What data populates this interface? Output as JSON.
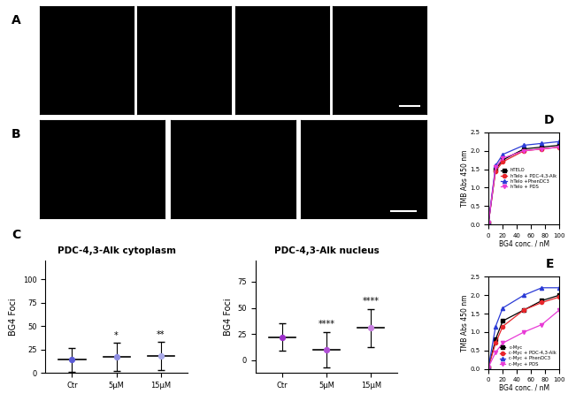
{
  "chart_data": [
    {
      "type": "image",
      "label": "A",
      "panels": 4
    },
    {
      "type": "image",
      "label": "B",
      "panels": 3
    },
    {
      "type": "dot",
      "label": "C",
      "title": "PDC-4,3-Alk cytoplasm",
      "ylabel": "BG4 Foci",
      "categories": [
        "Ctr",
        "5µM",
        "15µM"
      ],
      "mean": [
        14,
        17,
        18
      ],
      "sd": [
        13,
        15,
        15
      ],
      "significance": [
        null,
        "*",
        "**"
      ],
      "colors": [
        "#5b5bd6",
        "#8c8ce0",
        "#a9a9e8"
      ],
      "ylim": [
        0,
        120
      ],
      "yticks": [
        0,
        25,
        50,
        75,
        100
      ]
    },
    {
      "type": "dot",
      "title": "PDC-4,3-Alk nucleus",
      "ylabel": "BG4 Foci",
      "categories": [
        "Ctr",
        "5µM",
        "15µM"
      ],
      "mean": [
        22,
        10,
        31
      ],
      "sd": [
        13,
        17,
        18
      ],
      "significance": [
        null,
        "****",
        "****"
      ],
      "colors": [
        "#9b2fc9",
        "#b04fd6",
        "#c77ee0"
      ],
      "ylim": [
        -12,
        95
      ],
      "yticks": [
        0,
        25,
        50,
        75
      ]
    },
    {
      "type": "line",
      "label": "D",
      "xlabel": "BG4 conc. / nM",
      "ylabel": "TMB Abs 450 nm",
      "x": [
        0,
        10,
        20,
        50,
        75,
        100
      ],
      "series": [
        {
          "name": "hTELO",
          "color": "#000000",
          "marker": "square",
          "values": [
            0.05,
            1.5,
            1.75,
            2.05,
            2.1,
            2.15
          ]
        },
        {
          "name": "hTelo + PDC-4,3-Alk",
          "color": "#e8262b",
          "marker": "circle",
          "values": [
            0.05,
            1.45,
            1.7,
            2.0,
            2.05,
            2.1
          ]
        },
        {
          "name": "hTelo +PhenDC3",
          "color": "#2b3bd6",
          "marker": "triangle_up",
          "values": [
            0.05,
            1.6,
            1.9,
            2.15,
            2.2,
            2.25
          ]
        },
        {
          "name": "hTelo + PDS",
          "color": "#e83ad6",
          "marker": "triangle_down",
          "values": [
            0.05,
            1.55,
            1.8,
            2.0,
            2.05,
            2.1
          ]
        }
      ],
      "xlim": [
        0,
        100
      ],
      "xticks": [
        0,
        20,
        40,
        60,
        80,
        100
      ],
      "ylim": [
        0,
        2.5
      ],
      "yticks": [
        {
          "value": 0,
          "label": "0.0"
        },
        {
          "value": 0.5,
          "label": "0.5"
        },
        {
          "value": 1,
          "label": "1.0"
        },
        {
          "value": 1.5,
          "label": "1.5"
        },
        {
          "value": 2,
          "label": "2.0"
        },
        {
          "value": 2.5,
          "label": "2.5"
        }
      ],
      "legend": "right"
    },
    {
      "type": "line",
      "label": "E",
      "xlabel": "BG4 conc. / nM",
      "ylabel": "TMB Abs 450 nm",
      "x": [
        0,
        10,
        20,
        50,
        75,
        100
      ],
      "series": [
        {
          "name": "c-Myc",
          "color": "#000000",
          "marker": "square",
          "values": [
            0.05,
            0.8,
            1.3,
            1.6,
            1.85,
            2.0
          ]
        },
        {
          "name": "c-Myc + PDC-4,3-Alk",
          "color": "#e8262b",
          "marker": "circle",
          "values": [
            0.05,
            0.7,
            1.15,
            1.6,
            1.8,
            1.95
          ]
        },
        {
          "name": "c-Myc + PhenDC3",
          "color": "#2b3bd6",
          "marker": "triangle_up",
          "values": [
            0.05,
            1.15,
            1.65,
            2.0,
            2.2,
            2.2
          ]
        },
        {
          "name": "c-Myc + PDS",
          "color": "#e83ad6",
          "marker": "triangle_down",
          "values": [
            0.05,
            0.45,
            0.7,
            1.0,
            1.2,
            1.6
          ]
        }
      ],
      "xlim": [
        0,
        100
      ],
      "xticks": [
        0,
        20,
        40,
        60,
        80,
        100
      ],
      "ylim": [
        0,
        2.5
      ],
      "yticks": [
        {
          "value": 0,
          "label": "0.0"
        },
        {
          "value": 0.5,
          "label": "0.5"
        },
        {
          "value": 1,
          "label": "1.0"
        },
        {
          "value": 1.5,
          "label": "1.5"
        },
        {
          "value": 2,
          "label": "2.0"
        },
        {
          "value": 2.5,
          "label": "2.5"
        }
      ],
      "legend": "lower right"
    }
  ]
}
